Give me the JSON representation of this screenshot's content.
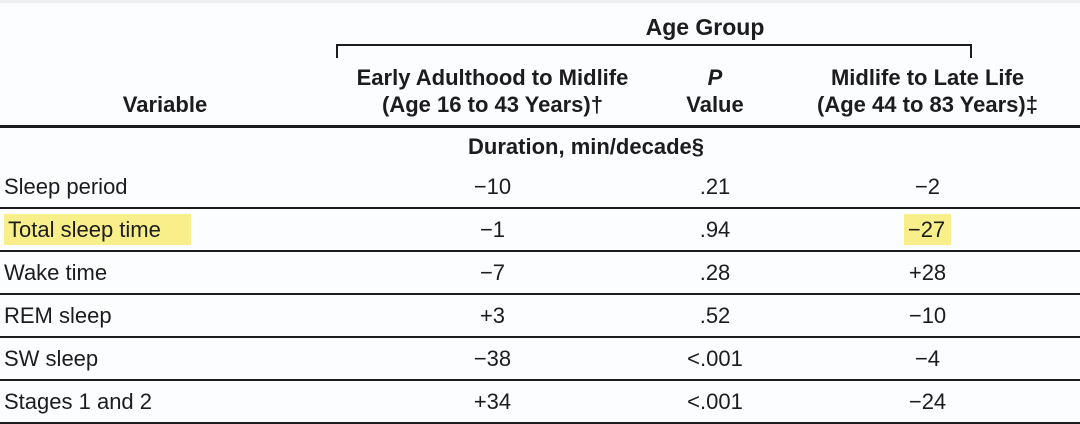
{
  "table": {
    "title": "Age Group",
    "variable_header": "Variable",
    "section_header": "Duration, min/decade§",
    "columns": {
      "early_line1": "Early Adulthood to Midlife",
      "early_line2": "(Age 16 to 43 Years)†",
      "p_line1": "P",
      "p_line2": "Value",
      "late_line1": "Midlife to Late Life",
      "late_line2": "(Age 44 to 83 Years)‡"
    },
    "rows": [
      {
        "variable": "Sleep period",
        "early": "−10",
        "p": ".21",
        "late": "−2"
      },
      {
        "variable": "Total sleep time",
        "early": "−1",
        "p": ".94",
        "late": "−27"
      },
      {
        "variable": "Wake time",
        "early": "−7",
        "p": ".28",
        "late": "+28"
      },
      {
        "variable": "REM sleep",
        "early": "+3",
        "p": ".52",
        "late": "−10"
      },
      {
        "variable": "SW sleep",
        "early": "−38",
        "p": "<.001",
        "late": "−4"
      },
      {
        "variable": "Stages 1 and 2",
        "early": "+34",
        "p": "<.001",
        "late": "−24"
      }
    ],
    "colors": {
      "highlight": "#f8ef8b",
      "text": "#1c1c1e",
      "rule": "#1c1c1e",
      "background": "#fcfdfe"
    }
  }
}
